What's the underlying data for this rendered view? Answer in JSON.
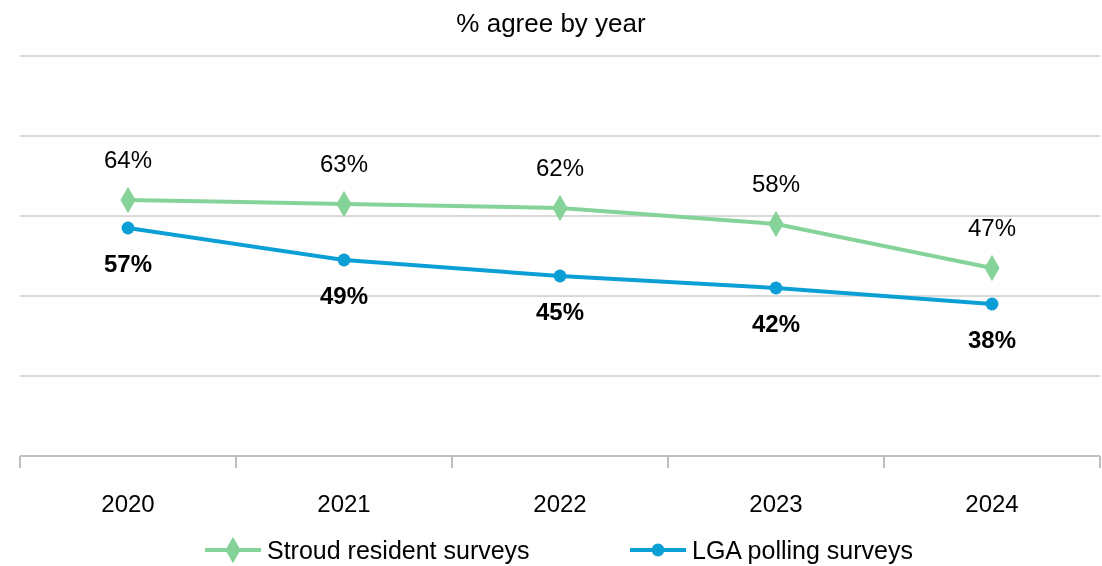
{
  "chart_data": {
    "type": "line",
    "title": "% agree by year",
    "categories": [
      "2020",
      "2021",
      "2022",
      "2023",
      "2024"
    ],
    "series": [
      {
        "name": "Stroud resident surveys",
        "color": "#86d39a",
        "marker": "diamond",
        "values": [
          64,
          63,
          62,
          58,
          47
        ],
        "value_labels": [
          "64%",
          "63%",
          "62%",
          "58%",
          "47%"
        ]
      },
      {
        "name": "LGA polling surveys",
        "color": "#0b9fd6",
        "marker": "circle",
        "values": [
          57,
          49,
          45,
          42,
          38
        ],
        "value_labels": [
          "57%",
          "49%",
          "45%",
          "42%",
          "38%"
        ]
      }
    ],
    "ylim": [
      0,
      100
    ],
    "yticks": [
      {
        "value": 0,
        "label": null
      },
      {
        "value": 20,
        "label": null
      },
      {
        "value": 40,
        "label": null
      },
      {
        "value": 60,
        "label": null
      },
      {
        "value": 80,
        "label": null
      },
      {
        "value": 100,
        "label": null
      }
    ],
    "tick_labels": "x",
    "grid": "y",
    "legend": "bottom",
    "line_style": "solid"
  }
}
